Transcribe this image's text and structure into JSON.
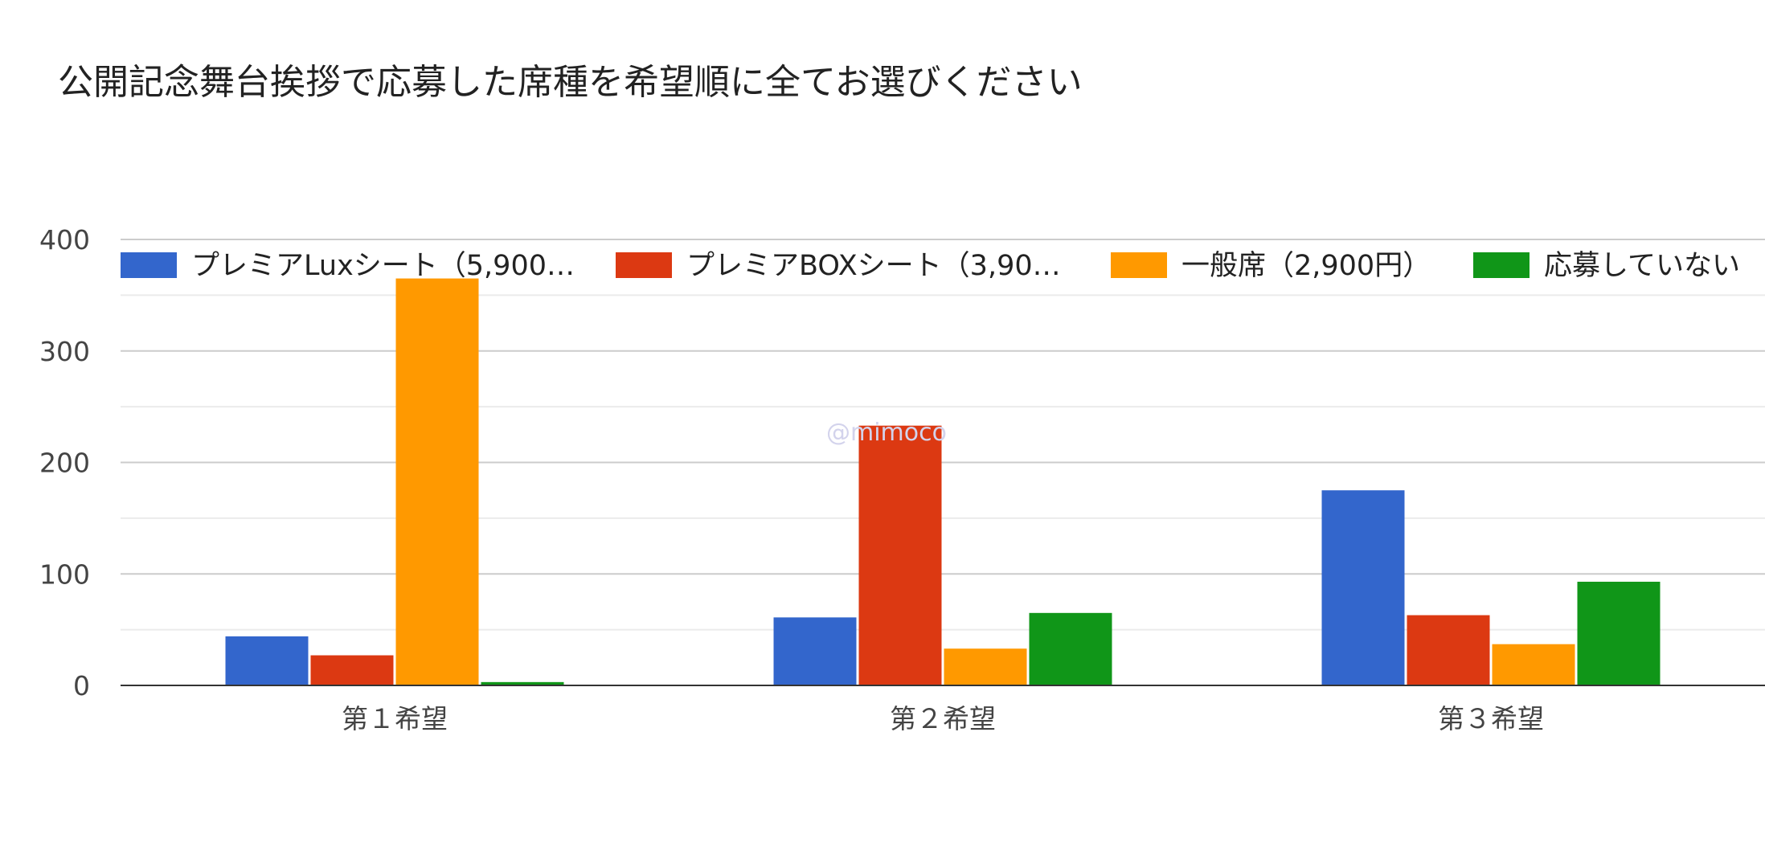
{
  "title": "公開記念舞台挨拶で応募した席種を希望順に全てお選びください",
  "watermark": "@mimoco",
  "chart_data": {
    "type": "bar",
    "title": "公開記念舞台挨拶で応募した席種を希望順に全てお選びください",
    "categories": [
      "第１希望",
      "第２希望",
      "第３希望"
    ],
    "series": [
      {
        "name": "プレミアLuxシート（5,900…",
        "color": "#3366cc",
        "values": [
          44,
          61,
          175
        ]
      },
      {
        "name": "プレミアBOXシート（3,90…",
        "color": "#dc3912",
        "values": [
          27,
          233,
          63
        ]
      },
      {
        "name": "一般席（2,900円）",
        "color": "#ff9900",
        "values": [
          365,
          33,
          37
        ]
      },
      {
        "name": "応募していない",
        "color": "#109618",
        "values": [
          3,
          65,
          93
        ]
      }
    ],
    "ylim": [
      0,
      400
    ],
    "yticks": [
      0,
      100,
      200,
      300,
      400
    ],
    "minor_gridlines": true,
    "xlabel": "",
    "ylabel": "",
    "legend_position": "top",
    "grid": true
  }
}
